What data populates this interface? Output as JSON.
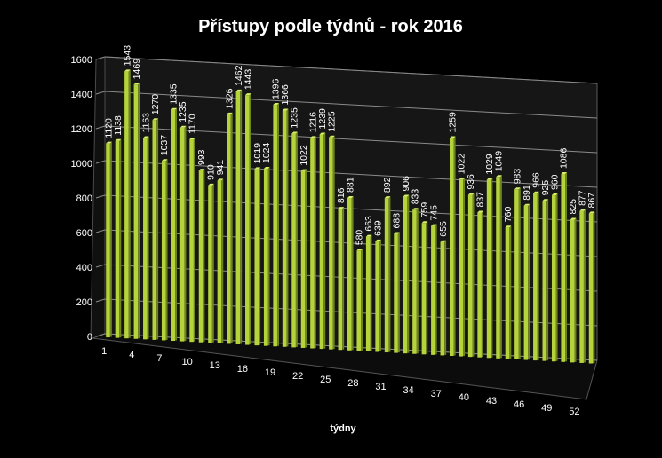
{
  "chart_data": {
    "type": "bar",
    "title": "Přístupy podle týdnů - rok 2016",
    "xlabel": "týdny",
    "ylabel": "",
    "ylim": [
      0,
      1600
    ],
    "yticks": [
      "0",
      "200",
      "400",
      "600",
      "800",
      "1000",
      "1200",
      "1400",
      "1600"
    ],
    "categories": [
      1,
      2,
      3,
      4,
      5,
      6,
      7,
      8,
      9,
      10,
      11,
      12,
      13,
      14,
      15,
      16,
      17,
      18,
      19,
      20,
      21,
      22,
      23,
      24,
      25,
      26,
      27,
      28,
      29,
      30,
      31,
      32,
      33,
      34,
      35,
      36,
      37,
      38,
      39,
      40,
      41,
      42,
      43,
      44,
      45,
      46,
      47,
      48,
      49,
      50,
      51,
      52,
      53
    ],
    "xtick_labels": [
      "1",
      "4",
      "7",
      "10",
      "13",
      "16",
      "19",
      "22",
      "25",
      "28",
      "31",
      "34",
      "37",
      "40",
      "43",
      "46",
      "49",
      "52"
    ],
    "values": [
      1120,
      1138,
      1543,
      1469,
      1163,
      1270,
      1037,
      1335,
      1235,
      1170,
      993,
      910,
      941,
      1326,
      1462,
      1443,
      1019,
      1024,
      1396,
      1366,
      1235,
      1022,
      1216,
      1239,
      1225,
      816,
      881,
      580,
      663,
      639,
      892,
      688,
      906,
      833,
      759,
      745,
      655,
      1259,
      1022,
      936,
      837,
      1029,
      1049,
      760,
      983,
      891,
      966,
      925,
      960,
      1086,
      825,
      877,
      867
    ],
    "bar_color": "#b5d33a",
    "grid": true,
    "background": "#000000"
  }
}
